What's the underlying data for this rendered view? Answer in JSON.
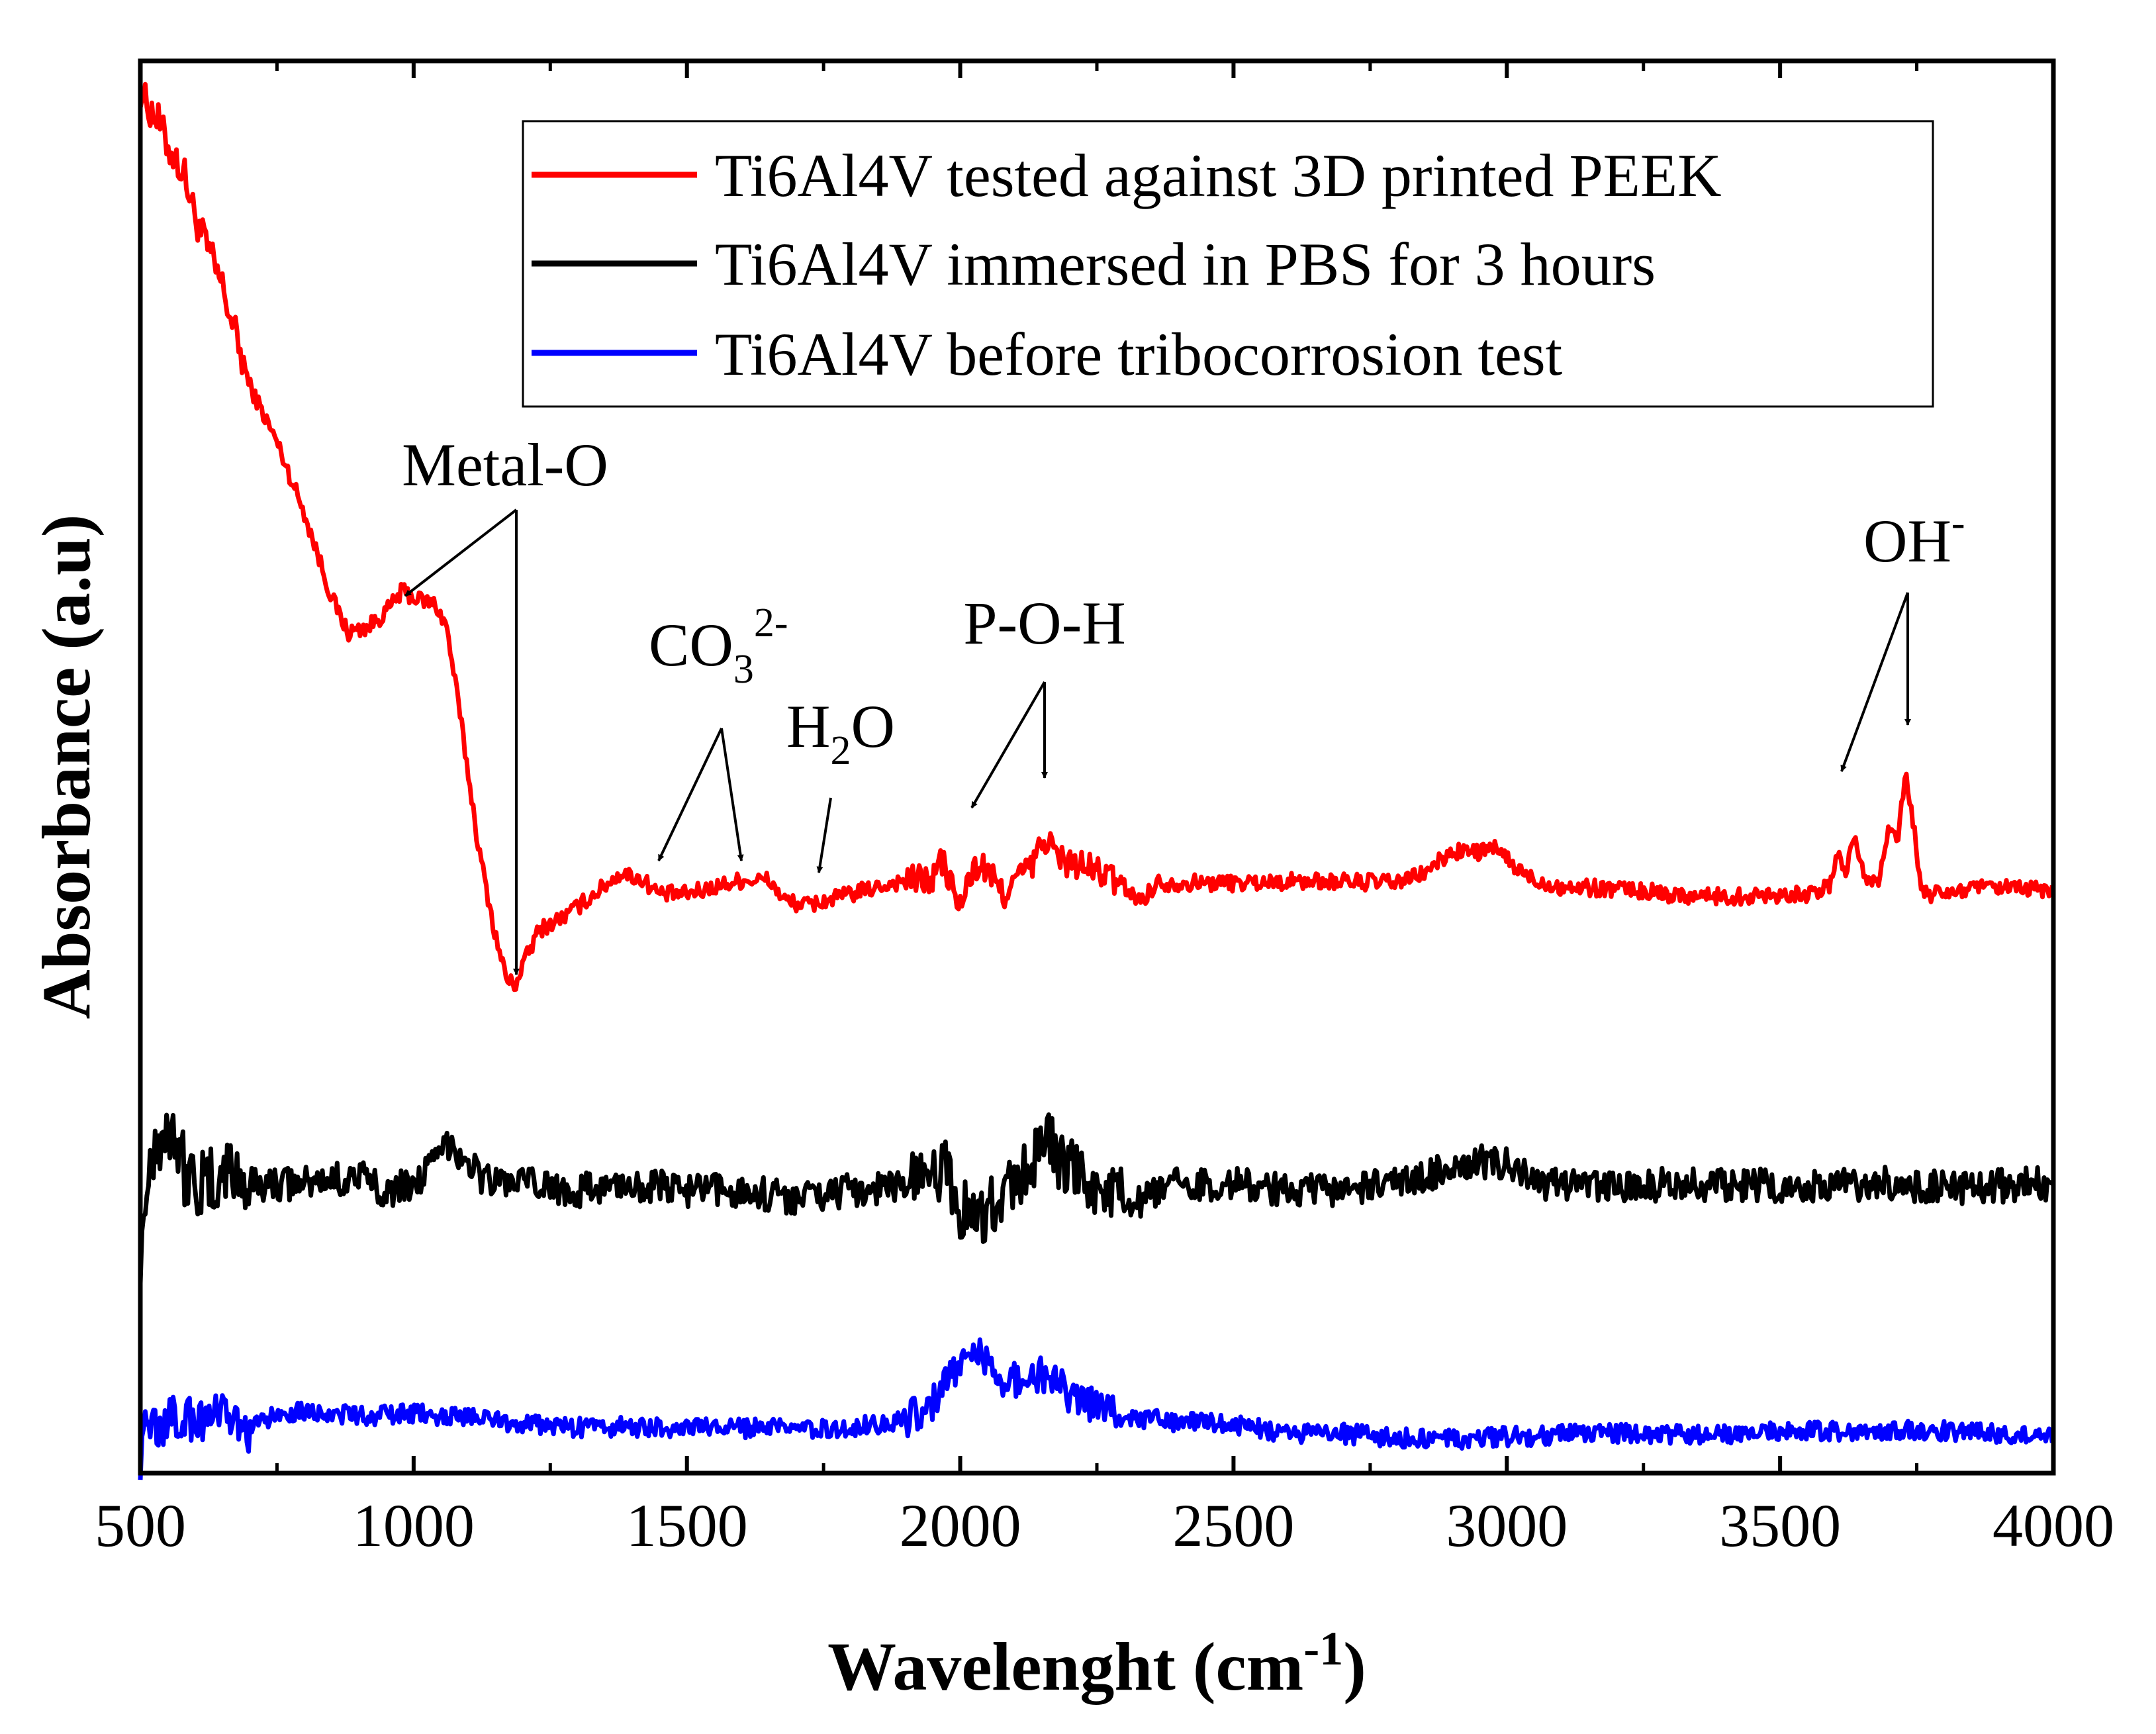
{
  "chart_data": {
    "type": "line",
    "xlabel": "Wavelenght (cm",
    "xlabel_sup": "-1",
    "xlabel_close": ")",
    "ylabel": "Absorbance (a.u)",
    "xlim": [
      500,
      4000
    ],
    "ylim": [
      0,
      1
    ],
    "xticks": [
      500,
      1000,
      1500,
      2000,
      2500,
      3000,
      3500,
      4000
    ],
    "grid": false,
    "y_tick_labels": false,
    "legend_position": "top-right",
    "series": [
      {
        "name": "Ti6Al4V tested against 3D printed PEEK",
        "color": "#ff0000",
        "base": 0.0,
        "noise": 0.006,
        "points": [
          [
            500,
            0.98
          ],
          [
            510,
            0.97
          ],
          [
            530,
            0.96
          ],
          [
            550,
            0.94
          ],
          [
            580,
            0.92
          ],
          [
            600,
            0.89
          ],
          [
            650,
            0.84
          ],
          [
            700,
            0.77
          ],
          [
            750,
            0.73
          ],
          [
            800,
            0.68
          ],
          [
            850,
            0.62
          ],
          [
            880,
            0.595
          ],
          [
            920,
            0.6
          ],
          [
            950,
            0.61
          ],
          [
            980,
            0.625
          ],
          [
            1000,
            0.62
          ],
          [
            1040,
            0.615
          ],
          [
            1060,
            0.6
          ],
          [
            1080,
            0.55
          ],
          [
            1120,
            0.44
          ],
          [
            1150,
            0.38
          ],
          [
            1170,
            0.35
          ],
          [
            1185,
            0.345
          ],
          [
            1200,
            0.36
          ],
          [
            1230,
            0.385
          ],
          [
            1280,
            0.395
          ],
          [
            1330,
            0.41
          ],
          [
            1380,
            0.425
          ],
          [
            1420,
            0.42
          ],
          [
            1450,
            0.41
          ],
          [
            1500,
            0.41
          ],
          [
            1550,
            0.415
          ],
          [
            1600,
            0.42
          ],
          [
            1650,
            0.42
          ],
          [
            1680,
            0.405
          ],
          [
            1720,
            0.402
          ],
          [
            1760,
            0.406
          ],
          [
            1800,
            0.41
          ],
          [
            1850,
            0.415
          ],
          [
            1900,
            0.42
          ],
          [
            1950,
            0.42
          ],
          [
            1965,
            0.435
          ],
          [
            1980,
            0.42
          ],
          [
            2000,
            0.4
          ],
          [
            2020,
            0.425
          ],
          [
            2040,
            0.43
          ],
          [
            2060,
            0.42
          ],
          [
            2080,
            0.41
          ],
          [
            2100,
            0.42
          ],
          [
            2130,
            0.43
          ],
          [
            2150,
            0.445
          ],
          [
            2160,
            0.45
          ],
          [
            2180,
            0.435
          ],
          [
            2220,
            0.43
          ],
          [
            2260,
            0.425
          ],
          [
            2300,
            0.415
          ],
          [
            2330,
            0.405
          ],
          [
            2360,
            0.418
          ],
          [
            2400,
            0.418
          ],
          [
            2500,
            0.418
          ],
          [
            2600,
            0.419
          ],
          [
            2700,
            0.419
          ],
          [
            2800,
            0.418
          ],
          [
            2850,
            0.425
          ],
          [
            2900,
            0.44
          ],
          [
            2950,
            0.44
          ],
          [
            2985,
            0.442
          ],
          [
            3010,
            0.43
          ],
          [
            3050,
            0.42
          ],
          [
            3100,
            0.415
          ],
          [
            3200,
            0.414
          ],
          [
            3300,
            0.41
          ],
          [
            3400,
            0.408
          ],
          [
            3500,
            0.41
          ],
          [
            3560,
            0.41
          ],
          [
            3590,
            0.415
          ],
          [
            3605,
            0.44
          ],
          [
            3620,
            0.425
          ],
          [
            3635,
            0.452
          ],
          [
            3655,
            0.42
          ],
          [
            3680,
            0.42
          ],
          [
            3700,
            0.46
          ],
          [
            3715,
            0.45
          ],
          [
            3730,
            0.495
          ],
          [
            3745,
            0.455
          ],
          [
            3760,
            0.41
          ],
          [
            3800,
            0.41
          ],
          [
            3850,
            0.414
          ],
          [
            3900,
            0.414
          ],
          [
            4000,
            0.413
          ]
        ]
      },
      {
        "name": "Ti6Al4V immersed in PBS for 3 hours",
        "color": "#000000",
        "base": 0.0,
        "noise": 0.012,
        "points": [
          [
            500,
            0.16
          ],
          [
            520,
            0.23
          ],
          [
            540,
            0.24
          ],
          [
            560,
            0.25
          ],
          [
            580,
            0.215
          ],
          [
            620,
            0.2
          ],
          [
            660,
            0.215
          ],
          [
            700,
            0.205
          ],
          [
            800,
            0.205
          ],
          [
            900,
            0.21
          ],
          [
            950,
            0.2
          ],
          [
            1000,
            0.205
          ],
          [
            1040,
            0.22
          ],
          [
            1065,
            0.235
          ],
          [
            1090,
            0.225
          ],
          [
            1130,
            0.208
          ],
          [
            1200,
            0.205
          ],
          [
            1300,
            0.2
          ],
          [
            1400,
            0.205
          ],
          [
            1500,
            0.2
          ],
          [
            1600,
            0.2
          ],
          [
            1700,
            0.195
          ],
          [
            1800,
            0.2
          ],
          [
            1900,
            0.205
          ],
          [
            1960,
            0.21
          ],
          [
            1970,
            0.23
          ],
          [
            1990,
            0.19
          ],
          [
            2020,
            0.185
          ],
          [
            2040,
            0.18
          ],
          [
            2060,
            0.19
          ],
          [
            2100,
            0.205
          ],
          [
            2140,
            0.225
          ],
          [
            2160,
            0.24
          ],
          [
            2180,
            0.22
          ],
          [
            2220,
            0.21
          ],
          [
            2260,
            0.2
          ],
          [
            2320,
            0.19
          ],
          [
            2400,
            0.205
          ],
          [
            2500,
            0.205
          ],
          [
            2600,
            0.2
          ],
          [
            2700,
            0.2
          ],
          [
            2800,
            0.205
          ],
          [
            2850,
            0.21
          ],
          [
            2900,
            0.218
          ],
          [
            2950,
            0.22
          ],
          [
            3000,
            0.22
          ],
          [
            3050,
            0.205
          ],
          [
            3100,
            0.203
          ],
          [
            3300,
            0.204
          ],
          [
            3500,
            0.204
          ],
          [
            3700,
            0.205
          ],
          [
            3800,
            0.202
          ],
          [
            4000,
            0.205
          ]
        ]
      },
      {
        "name": "Ti6Al4V before tribocorrosion test",
        "color": "#0000ff",
        "base": 0.0,
        "noise": 0.007,
        "points": [
          [
            500,
            0.01
          ],
          [
            510,
            0.04
          ],
          [
            530,
            0.03
          ],
          [
            560,
            0.04
          ],
          [
            600,
            0.038
          ],
          [
            650,
            0.04
          ],
          [
            700,
            0.03
          ],
          [
            750,
            0.042
          ],
          [
            800,
            0.045
          ],
          [
            900,
            0.04
          ],
          [
            1000,
            0.042
          ],
          [
            1100,
            0.04
          ],
          [
            1200,
            0.035
          ],
          [
            1300,
            0.032
          ],
          [
            1400,
            0.033
          ],
          [
            1500,
            0.032
          ],
          [
            1600,
            0.032
          ],
          [
            1700,
            0.031
          ],
          [
            1800,
            0.032
          ],
          [
            1900,
            0.038
          ],
          [
            1950,
            0.05
          ],
          [
            2000,
            0.08
          ],
          [
            2040,
            0.085
          ],
          [
            2080,
            0.065
          ],
          [
            2120,
            0.068
          ],
          [
            2160,
            0.07
          ],
          [
            2200,
            0.055
          ],
          [
            2250,
            0.048
          ],
          [
            2300,
            0.04
          ],
          [
            2400,
            0.036
          ],
          [
            2500,
            0.034
          ],
          [
            2600,
            0.028
          ],
          [
            2700,
            0.028
          ],
          [
            2800,
            0.025
          ],
          [
            2900,
            0.024
          ],
          [
            3000,
            0.026
          ],
          [
            3200,
            0.028
          ],
          [
            3400,
            0.028
          ],
          [
            3600,
            0.03
          ],
          [
            3800,
            0.03
          ],
          [
            4000,
            0.025
          ]
        ]
      }
    ],
    "annotations": [
      {
        "text": "Metal-O",
        "sub": "",
        "sup": ""
      },
      {
        "text": "CO",
        "sub": "3",
        "sup": "2-"
      },
      {
        "text": "H",
        "sub": "2",
        "sup": "",
        "tail": "O"
      },
      {
        "text": "P-O-H",
        "sub": "",
        "sup": ""
      },
      {
        "text": "OH",
        "sub": "",
        "sup": "-"
      }
    ]
  }
}
